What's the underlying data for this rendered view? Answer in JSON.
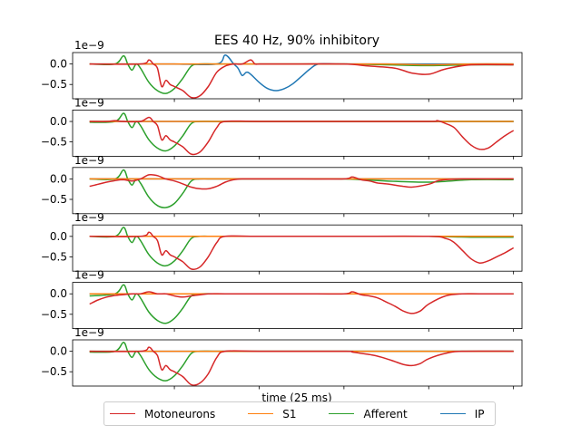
{
  "chart_data": {
    "type": "line",
    "title": "EES 40 Hz, 90% inhibitory",
    "xlabel": "time (25 ms)",
    "ylabel": "",
    "offset_label": "1e−9",
    "yticks": [
      0.0,
      -0.5
    ],
    "ytick_labels": [
      "0.0",
      "−0.5"
    ],
    "ylim": [
      -0.85,
      0.28
    ],
    "xlim": [
      -2,
      51
    ],
    "xticks": [
      10,
      20,
      30,
      40,
      50
    ],
    "legend_placement": "bottom-center",
    "series_styles": [
      {
        "name": "Motoneurons",
        "color": "#d62728"
      },
      {
        "name": "S1",
        "color": "#ff7f0e"
      },
      {
        "name": "Afferent",
        "color": "#2ca02c"
      },
      {
        "name": "IP",
        "color": "#1f77b4"
      }
    ],
    "subplots": [
      {
        "series": [
          {
            "name": "IP",
            "x": [
              0,
              6,
              7,
              10,
              15,
              16,
              17,
              17.5,
              18,
              18.5,
              19,
              20,
              21,
              22,
              23,
              24,
              25,
              26,
              27,
              29,
              31,
              35,
              40,
              45,
              50
            ],
            "values": [
              0,
              0,
              0,
              0,
              0,
              0.22,
              0,
              -0.1,
              -0.28,
              -0.2,
              -0.25,
              -0.45,
              -0.6,
              -0.65,
              -0.6,
              -0.48,
              -0.3,
              -0.12,
              0,
              0,
              0,
              0,
              0,
              0,
              0
            ]
          },
          {
            "name": "Afferent",
            "x": [
              0,
              3,
              4,
              4.5,
              5,
              5.5,
              6,
              7,
              8,
              9,
              10,
              11,
              12,
              13,
              15,
              20,
              25,
              30,
              35,
              40,
              45,
              50
            ],
            "values": [
              0,
              0,
              0.2,
              0,
              -0.15,
              0,
              -0.1,
              -0.45,
              -0.65,
              -0.72,
              -0.6,
              -0.35,
              -0.05,
              0,
              0,
              0,
              0,
              0,
              -0.02,
              -0.04,
              -0.02,
              -0.02
            ]
          },
          {
            "name": "S1",
            "x": [
              0,
              5,
              7,
              9,
              10,
              12,
              14,
              20,
              25,
              30,
              35,
              40,
              45,
              50
            ],
            "values": [
              0,
              0,
              0,
              0,
              0,
              0,
              0,
              0,
              0,
              0,
              0,
              -0.02,
              0,
              0
            ]
          },
          {
            "name": "Motoneurons",
            "x": [
              0,
              6,
              7,
              7.5,
              8,
              8.5,
              9,
              9.5,
              10,
              11,
              12,
              13,
              14,
              15,
              16,
              17,
              18,
              19,
              19.5,
              20,
              21,
              25,
              30,
              33,
              36,
              38,
              40,
              42,
              45,
              50
            ],
            "values": [
              0,
              0,
              0.1,
              0,
              -0.1,
              -0.55,
              -0.4,
              -0.5,
              -0.55,
              -0.65,
              -0.82,
              -0.78,
              -0.55,
              -0.2,
              -0.05,
              0,
              0,
              0.1,
              0,
              0,
              0,
              0,
              0,
              -0.05,
              -0.1,
              -0.22,
              -0.25,
              -0.12,
              -0.02,
              -0.02
            ]
          }
        ]
      },
      {
        "series": [
          {
            "name": "IP",
            "x": [
              0,
              10,
              20,
              30,
              40,
              50
            ],
            "values": [
              0,
              0,
              0,
              0,
              0,
              0
            ]
          },
          {
            "name": "Afferent",
            "x": [
              0,
              3,
              4,
              4.5,
              5,
              5.5,
              6,
              7,
              8,
              9,
              10,
              11,
              12,
              13,
              15,
              20,
              30,
              40,
              50
            ],
            "values": [
              -0.02,
              0,
              0.2,
              0,
              -0.15,
              0,
              -0.1,
              -0.45,
              -0.65,
              -0.72,
              -0.6,
              -0.35,
              -0.05,
              0,
              0,
              0,
              0,
              0,
              0
            ]
          },
          {
            "name": "S1",
            "x": [
              0,
              10,
              20,
              30,
              40,
              50
            ],
            "values": [
              0,
              0,
              0,
              0,
              0,
              0
            ]
          },
          {
            "name": "Motoneurons",
            "x": [
              0,
              2,
              3,
              4,
              6,
              7,
              7.5,
              8,
              8.5,
              9,
              9.5,
              10,
              11,
              12,
              13,
              14,
              15,
              16,
              20,
              30,
              40,
              41,
              42,
              43,
              44,
              45,
              46,
              47,
              48,
              49,
              50
            ],
            "values": [
              0,
              0,
              0.02,
              0,
              0,
              0.1,
              0,
              -0.1,
              -0.45,
              -0.35,
              -0.45,
              -0.5,
              -0.62,
              -0.8,
              -0.75,
              -0.5,
              -0.15,
              0,
              0,
              0,
              0,
              0.02,
              -0.05,
              -0.15,
              -0.38,
              -0.58,
              -0.68,
              -0.65,
              -0.5,
              -0.35,
              -0.22
            ]
          }
        ]
      },
      {
        "series": [
          {
            "name": "IP",
            "x": [
              0,
              10,
              20,
              30,
              40,
              50
            ],
            "values": [
              0,
              0,
              0,
              0,
              0,
              0
            ]
          },
          {
            "name": "Afferent",
            "x": [
              0,
              3,
              4,
              4.5,
              5,
              5.5,
              6,
              7,
              8,
              9,
              10,
              11,
              12,
              13,
              15,
              20,
              25,
              30,
              35,
              40,
              45,
              50
            ],
            "values": [
              0,
              0,
              0.22,
              0,
              -0.15,
              0,
              -0.1,
              -0.45,
              -0.65,
              -0.7,
              -0.6,
              -0.35,
              -0.05,
              0,
              0,
              0,
              0,
              0,
              -0.05,
              -0.08,
              -0.02,
              -0.02
            ]
          },
          {
            "name": "S1",
            "x": [
              0,
              10,
              20,
              30,
              40,
              50
            ],
            "values": [
              0,
              0,
              0,
              0,
              0,
              0
            ]
          },
          {
            "name": "Motoneurons",
            "x": [
              0,
              1,
              2,
              3,
              4,
              5,
              6,
              7,
              8,
              9,
              10,
              11,
              12,
              13,
              14,
              15,
              16,
              17,
              18,
              20,
              25,
              30,
              31,
              32,
              33,
              34,
              35,
              36,
              37,
              38,
              40,
              41,
              42,
              44,
              46,
              48,
              50
            ],
            "values": [
              -0.18,
              -0.13,
              -0.08,
              -0.04,
              -0.02,
              -0.05,
              0,
              0.1,
              0.08,
              0,
              -0.05,
              -0.12,
              -0.2,
              -0.24,
              -0.24,
              -0.18,
              -0.08,
              -0.02,
              0,
              0,
              0,
              0,
              0.05,
              -0.02,
              -0.05,
              -0.1,
              -0.12,
              -0.15,
              -0.18,
              -0.2,
              -0.13,
              -0.05,
              -0.02,
              0,
              0,
              0,
              0
            ]
          }
        ]
      },
      {
        "series": [
          {
            "name": "IP",
            "x": [
              0,
              10,
              20,
              30,
              40,
              50
            ],
            "values": [
              0,
              0,
              0,
              0,
              0,
              0
            ]
          },
          {
            "name": "Afferent",
            "x": [
              0,
              3,
              4,
              4.5,
              5,
              5.5,
              6,
              7,
              8,
              9,
              10,
              11,
              12,
              13,
              15,
              20,
              30,
              40,
              45,
              50
            ],
            "values": [
              0,
              0,
              0.22,
              0,
              -0.15,
              0,
              -0.1,
              -0.45,
              -0.65,
              -0.72,
              -0.6,
              -0.35,
              -0.05,
              0,
              0,
              0,
              0,
              0,
              -0.02,
              -0.02
            ]
          },
          {
            "name": "S1",
            "x": [
              0,
              10,
              20,
              30,
              40,
              50
            ],
            "values": [
              0,
              0,
              0,
              0,
              0,
              0
            ]
          },
          {
            "name": "Motoneurons",
            "x": [
              0,
              6,
              7,
              7.5,
              8,
              8.5,
              9,
              9.5,
              10,
              11,
              12,
              13,
              14,
              15,
              16,
              20,
              30,
              40,
              42,
              43,
              44,
              45,
              46,
              47,
              48,
              49,
              50
            ],
            "values": [
              0,
              0,
              0.1,
              0,
              -0.1,
              -0.45,
              -0.35,
              -0.45,
              -0.5,
              -0.62,
              -0.8,
              -0.75,
              -0.5,
              -0.15,
              0,
              0,
              0,
              0,
              -0.05,
              -0.15,
              -0.35,
              -0.55,
              -0.65,
              -0.6,
              -0.5,
              -0.4,
              -0.28
            ]
          }
        ]
      },
      {
        "series": [
          {
            "name": "IP",
            "x": [
              0,
              10,
              20,
              30,
              40,
              50
            ],
            "values": [
              0,
              0,
              0,
              0,
              0,
              0
            ]
          },
          {
            "name": "Afferent",
            "x": [
              0,
              3,
              4,
              4.5,
              5,
              5.5,
              6,
              7,
              8,
              9,
              10,
              11,
              12,
              13,
              15,
              20,
              30,
              40,
              50
            ],
            "values": [
              -0.05,
              0,
              0.22,
              0,
              -0.15,
              0,
              -0.1,
              -0.45,
              -0.65,
              -0.72,
              -0.6,
              -0.35,
              -0.05,
              0,
              0,
              0,
              0,
              0,
              0
            ]
          },
          {
            "name": "S1",
            "x": [
              0,
              10,
              20,
              30,
              40,
              50
            ],
            "values": [
              0,
              0,
              0,
              0,
              0,
              0
            ]
          },
          {
            "name": "Motoneurons",
            "x": [
              0,
              1,
              2,
              3,
              4,
              5,
              6,
              7,
              8,
              9,
              10,
              11,
              12,
              14,
              16,
              20,
              25,
              30,
              31,
              32,
              33,
              34,
              35,
              36,
              37,
              38,
              39,
              40,
              42,
              44,
              46,
              50
            ],
            "values": [
              -0.25,
              -0.15,
              -0.08,
              -0.04,
              -0.02,
              0,
              0,
              0.05,
              0,
              0,
              -0.05,
              -0.08,
              -0.05,
              0,
              0,
              0,
              0,
              0,
              0.05,
              -0.02,
              -0.05,
              -0.1,
              -0.2,
              -0.3,
              -0.42,
              -0.48,
              -0.42,
              -0.25,
              -0.05,
              0,
              0,
              0
            ]
          }
        ]
      },
      {
        "series": [
          {
            "name": "IP",
            "x": [
              0,
              10,
              20,
              30,
              40,
              50
            ],
            "values": [
              0,
              0,
              0,
              0,
              0,
              0
            ]
          },
          {
            "name": "Afferent",
            "x": [
              0,
              3,
              4,
              4.5,
              5,
              5.5,
              6,
              7,
              8,
              9,
              10,
              11,
              12,
              13,
              15,
              20,
              30,
              40,
              50
            ],
            "values": [
              -0.02,
              0,
              0.22,
              0,
              -0.15,
              0,
              -0.1,
              -0.45,
              -0.65,
              -0.72,
              -0.6,
              -0.35,
              -0.05,
              0,
              0,
              0,
              0,
              0,
              0
            ]
          },
          {
            "name": "S1",
            "x": [
              0,
              10,
              20,
              30,
              40,
              50
            ],
            "values": [
              0,
              0,
              0,
              0,
              0,
              0
            ]
          },
          {
            "name": "Motoneurons",
            "x": [
              0,
              6,
              7,
              7.5,
              8,
              8.5,
              9,
              9.5,
              10,
              11,
              12,
              13,
              14,
              15,
              16,
              20,
              30,
              31,
              32,
              33,
              34,
              35,
              36,
              37,
              38,
              39,
              40,
              42,
              44,
              50
            ],
            "values": [
              0,
              0,
              0.1,
              0,
              -0.1,
              -0.45,
              -0.35,
              -0.45,
              -0.5,
              -0.62,
              -0.82,
              -0.78,
              -0.55,
              -0.15,
              0,
              0,
              0,
              -0.02,
              -0.05,
              -0.08,
              -0.12,
              -0.18,
              -0.25,
              -0.32,
              -0.35,
              -0.3,
              -0.18,
              -0.05,
              0,
              0
            ]
          }
        ]
      }
    ]
  }
}
